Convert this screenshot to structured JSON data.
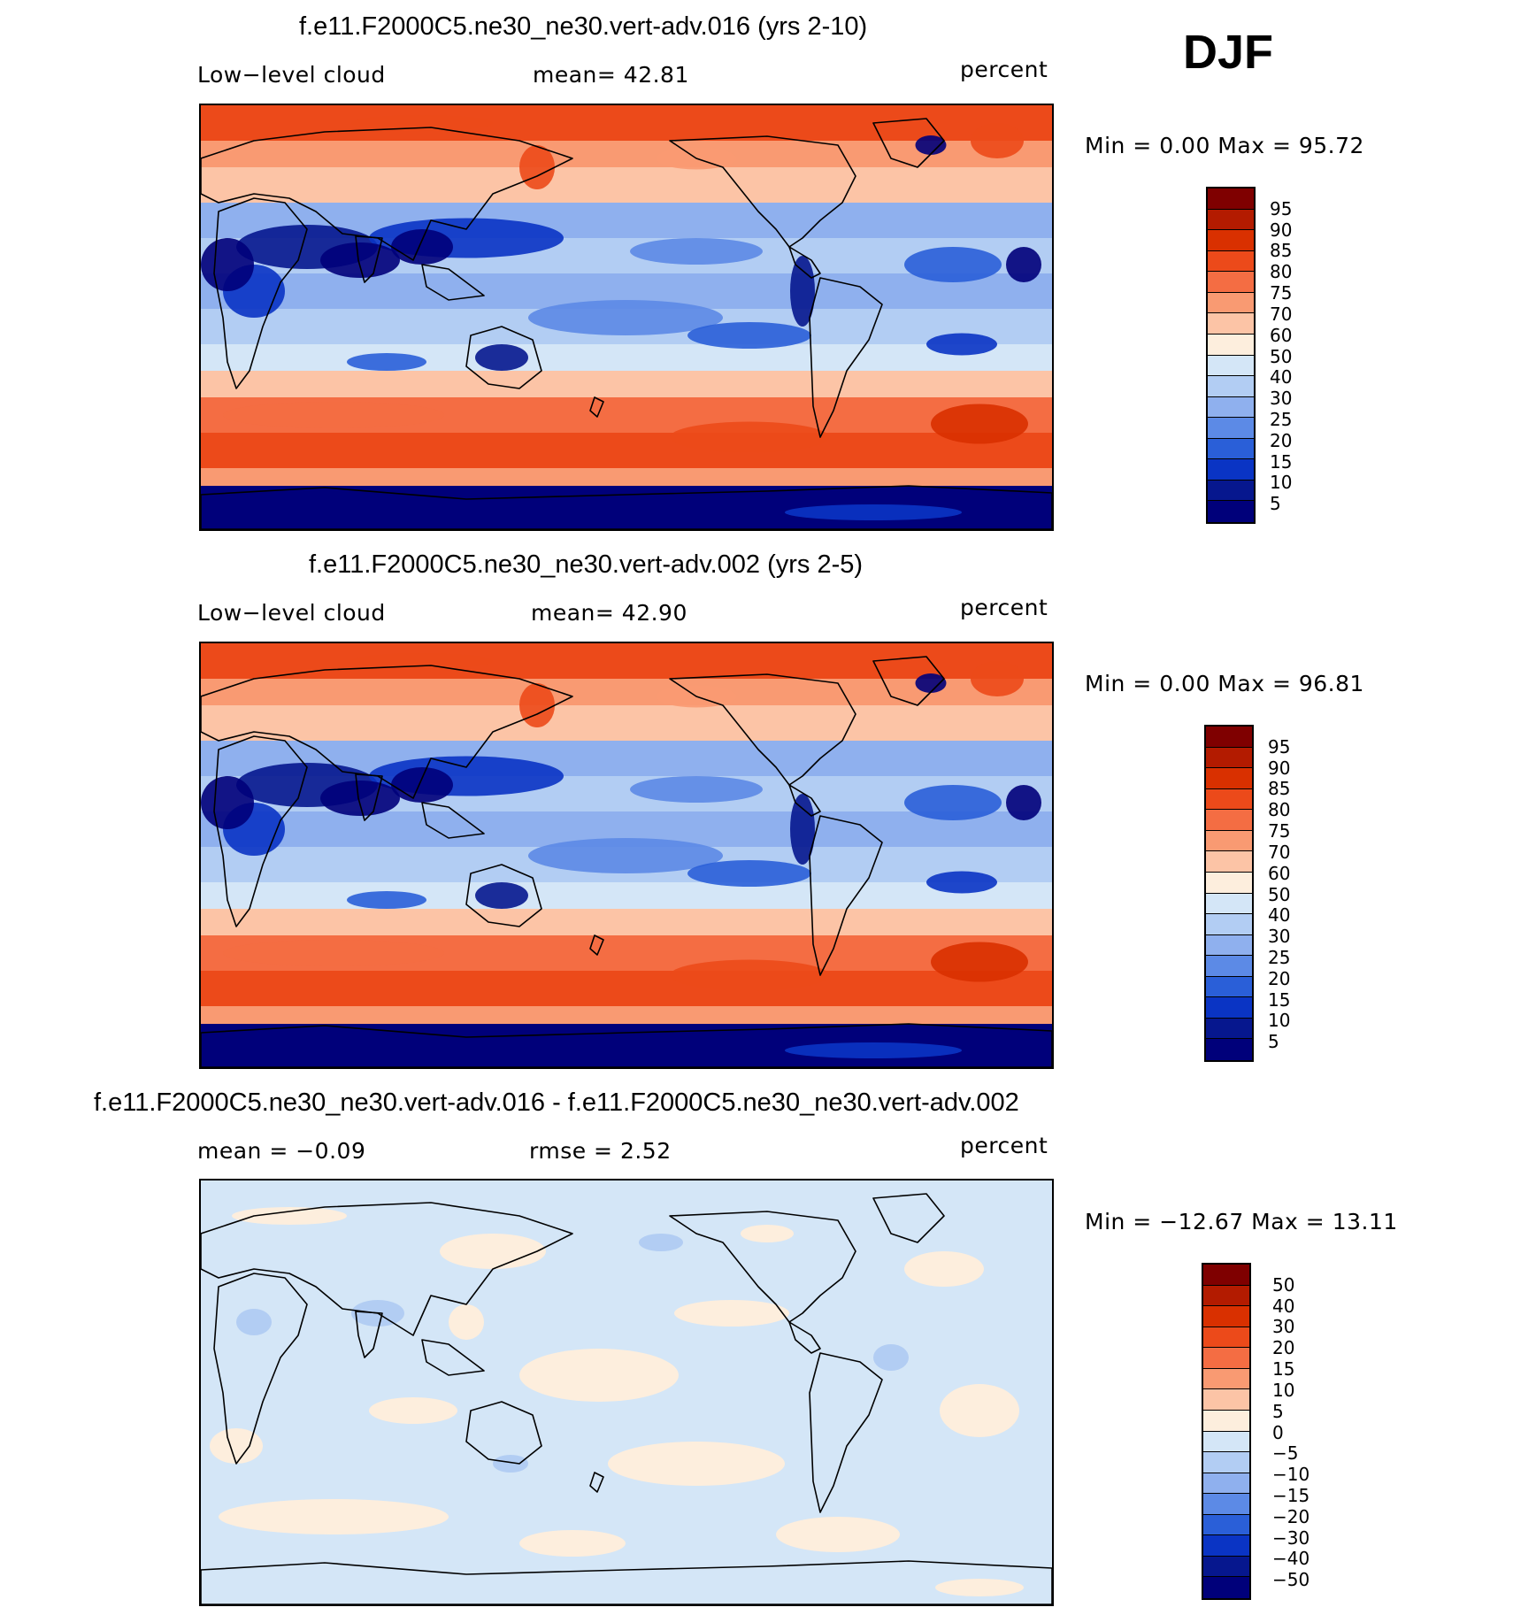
{
  "season": "DJF",
  "panels": [
    {
      "title": "f.e11.F2000C5.ne30_ne30.vert-adv.016 (yrs 2-10)",
      "left_label": "Low−level cloud",
      "center_label": "mean=   42.81",
      "right_label": "percent",
      "minmax": "Min =    0.00 Max =   95.72",
      "field": "cloud",
      "colorbar_labels": [
        "95",
        "90",
        "85",
        "80",
        "75",
        "70",
        "60",
        "50",
        "40",
        "30",
        "25",
        "20",
        "15",
        "10",
        "5"
      ]
    },
    {
      "title": "f.e11.F2000C5.ne30_ne30.vert-adv.002 (yrs 2-5)",
      "left_label": "Low−level cloud",
      "center_label": "mean=   42.90",
      "right_label": "percent",
      "minmax": "Min =    0.00 Max =   96.81",
      "field": "cloud",
      "colorbar_labels": [
        "95",
        "90",
        "85",
        "80",
        "75",
        "70",
        "60",
        "50",
        "40",
        "30",
        "25",
        "20",
        "15",
        "10",
        "5"
      ]
    },
    {
      "title": "f.e11.F2000C5.ne30_ne30.vert-adv.016 - f.e11.F2000C5.ne30_ne30.vert-adv.002",
      "left_label": "mean =   −0.09",
      "center_label": "rmse =    2.52",
      "right_label": "percent",
      "minmax": "Min = −12.67 Max =   13.11",
      "field": "diff",
      "colorbar_labels": [
        "50",
        "40",
        "30",
        "20",
        "15",
        "10",
        "5",
        "0",
        "−5",
        "−10",
        "−15",
        "−20",
        "−30",
        "−40",
        "−50"
      ]
    }
  ],
  "colors": {
    "cloud_scale": [
      "#7f0000",
      "#b31b00",
      "#d93000",
      "#ec4a1a",
      "#f46d43",
      "#f99a72",
      "#fcc4a6",
      "#fdeedd",
      "#d4e6f7",
      "#b2cdf3",
      "#8fb0ee",
      "#5c8ae6",
      "#2a5fd8",
      "#0a34c4",
      "#06178e",
      "#00007a"
    ],
    "diff_scale": [
      "#7f0000",
      "#b31b00",
      "#d93000",
      "#ec4a1a",
      "#f46d43",
      "#f99a72",
      "#fcc4a6",
      "#fdeedd",
      "#d4e6f7",
      "#b2cdf3",
      "#8fb0ee",
      "#5c8ae6",
      "#2a5fd8",
      "#0a34c4",
      "#06178e",
      "#00007a"
    ],
    "coast": "#000000"
  }
}
